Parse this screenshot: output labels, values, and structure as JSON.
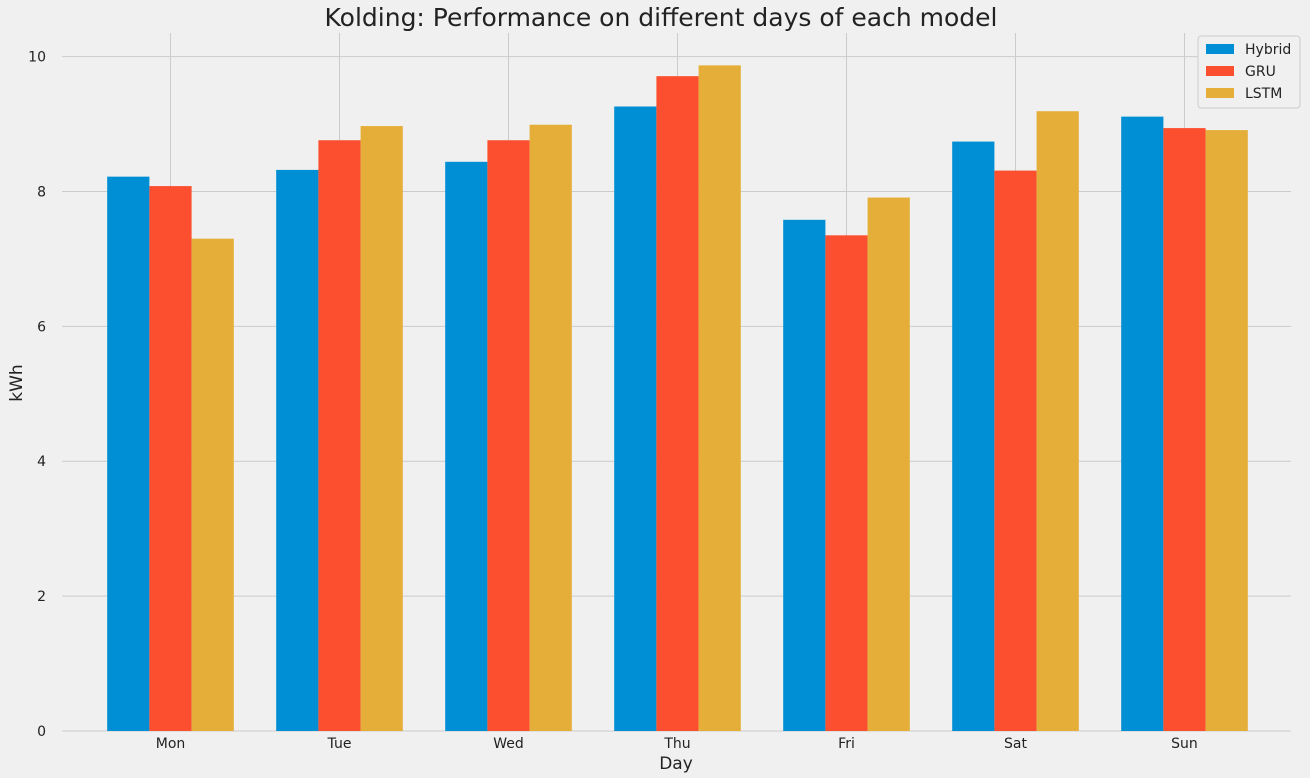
{
  "chart_data": {
    "type": "bar",
    "title": "Kolding: Performance on different days of each model",
    "xlabel": "Day",
    "ylabel": "kWh",
    "categories": [
      "Mon",
      "Tue",
      "Wed",
      "Thu",
      "Fri",
      "Sat",
      "Sun"
    ],
    "series": [
      {
        "name": "Hybrid",
        "color": "#008fd5",
        "values": [
          8.22,
          8.32,
          8.44,
          9.26,
          7.58,
          8.74,
          9.11
        ]
      },
      {
        "name": "GRU",
        "color": "#fc4f30",
        "values": [
          8.08,
          8.76,
          8.76,
          9.71,
          7.35,
          8.31,
          8.94
        ]
      },
      {
        "name": "LSTM",
        "color": "#e5ae38",
        "values": [
          7.3,
          8.97,
          8.99,
          9.87,
          7.91,
          9.19,
          8.91
        ]
      }
    ],
    "ylim": [
      0,
      10.35
    ],
    "yticks": [
      0,
      2,
      4,
      6,
      8,
      10
    ],
    "grid": true,
    "legend_position": "top-right"
  }
}
